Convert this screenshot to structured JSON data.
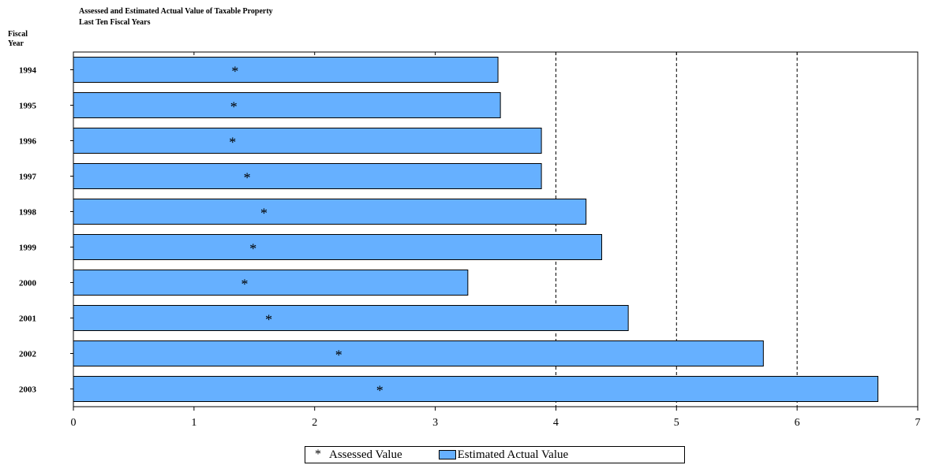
{
  "chart_data": {
    "type": "bar",
    "orientation": "horizontal",
    "title": "Assessed and Estimated Actual Value of Taxable Property",
    "subtitle": "Last Ten Fiscal Years",
    "ylabel_line1": "Fiscal",
    "ylabel_line2": "Year",
    "categories": [
      "1994",
      "1995",
      "1996",
      "1997",
      "1998",
      "1999",
      "2000",
      "2001",
      "2002",
      "2003"
    ],
    "series": [
      {
        "name": "Estimated Actual Value",
        "marker": "bar",
        "color": "#66b0ff",
        "values": [
          3.52,
          3.54,
          3.88,
          3.88,
          4.25,
          4.38,
          3.27,
          4.6,
          5.72,
          6.67
        ]
      },
      {
        "name": "Assessed Value",
        "marker": "star",
        "symbol": "*",
        "values": [
          1.34,
          1.33,
          1.32,
          1.44,
          1.58,
          1.49,
          1.42,
          1.62,
          2.2,
          2.54
        ]
      }
    ],
    "xlim": [
      0,
      7
    ],
    "xticks": [
      "0",
      "1",
      "2",
      "3",
      "4",
      "5",
      "6",
      "7"
    ],
    "gridlines_dashed_at": [
      4,
      5,
      6
    ],
    "legend": {
      "position": "bottom-center",
      "star_symbol": "*",
      "assessed_label": "Assessed Value",
      "estimated_label": "Estimated Actual Value"
    }
  }
}
